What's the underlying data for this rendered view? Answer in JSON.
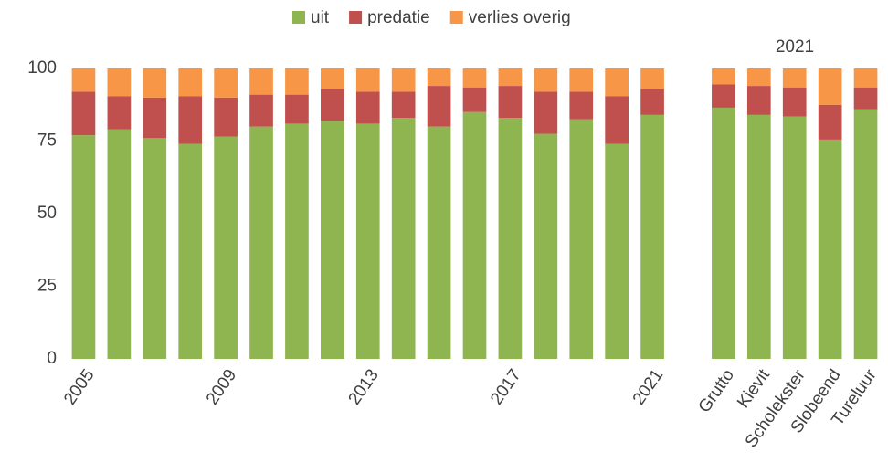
{
  "chart_data": {
    "type": "stacked_bar",
    "annotation": "2021",
    "categories": [
      "2005",
      null,
      null,
      null,
      "2009",
      null,
      null,
      null,
      "2013",
      null,
      null,
      null,
      "2017",
      null,
      null,
      null,
      "2021",
      null,
      "Grutto",
      "Kievit",
      "Scholekster",
      "Slobeend",
      "Tureluur"
    ],
    "series": [
      {
        "name": "uit",
        "color": "#8fb550",
        "values": [
          77,
          79,
          76,
          74,
          76.5,
          80,
          81,
          82,
          81,
          83,
          80,
          85,
          83,
          77.5,
          82.5,
          74,
          84,
          null,
          86.5,
          84,
          83.5,
          75.5,
          86
        ]
      },
      {
        "name": "predatie",
        "color": "#c0504d",
        "values": [
          15,
          11.5,
          14,
          16.5,
          13.5,
          11,
          10,
          11,
          11,
          9,
          14,
          8.5,
          11,
          14.5,
          9.5,
          16.5,
          9,
          null,
          8,
          10,
          10,
          12,
          7.5
        ]
      },
      {
        "name": "verlies overig",
        "color": "#f79646",
        "values": [
          8,
          9.5,
          10,
          9.5,
          10,
          9,
          9,
          7,
          8,
          8,
          6,
          6.5,
          6,
          8,
          8,
          9.5,
          7,
          null,
          5.5,
          6,
          6.5,
          12.5,
          6.5
        ]
      }
    ],
    "ylim": [
      0,
      100
    ],
    "yticks": [
      0,
      25,
      50,
      75,
      100
    ],
    "grid": false,
    "legend": "top"
  }
}
